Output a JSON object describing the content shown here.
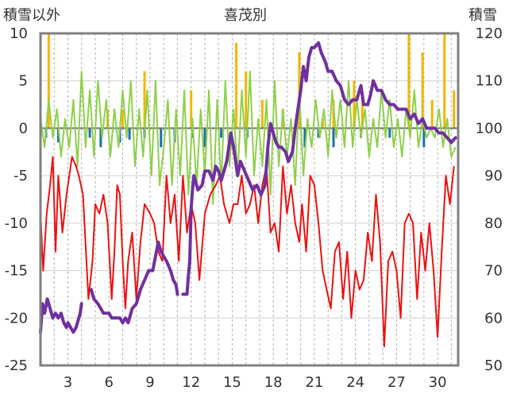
{
  "chart_data": {
    "type": "line",
    "title": "喜茂別",
    "y_left_label": "積雪以外",
    "y_right_label": "積雪",
    "y_left_range": [
      -25,
      10
    ],
    "y_left_ticks": [
      10,
      5,
      0,
      -5,
      -10,
      -15,
      -20,
      -25
    ],
    "y_right_range": [
      50,
      120
    ],
    "y_right_ticks": [
      120,
      110,
      100,
      90,
      80,
      70,
      60,
      50
    ],
    "x_range": [
      1,
      31.5
    ],
    "x_ticks": [
      3,
      6,
      9,
      12,
      15,
      18,
      21,
      24,
      27,
      30
    ],
    "grid": "vertical dashed at each day; horizontal at left-axis ticks",
    "series": [
      {
        "axis": "left",
        "style": "line",
        "color": "#ee1111",
        "x": [
          1.0,
          1.2,
          1.45,
          1.7,
          1.9,
          2.1,
          2.3,
          2.6,
          2.9,
          3.3,
          3.6,
          3.8,
          4.1,
          4.5,
          4.8,
          5.0,
          5.3,
          5.6,
          5.9,
          6.2,
          6.4,
          6.6,
          6.8,
          7.0,
          7.2,
          7.4,
          7.7,
          8.0,
          8.3,
          8.6,
          9.0,
          9.3,
          9.6,
          9.9,
          10.2,
          10.5,
          10.8,
          11.1,
          11.4,
          11.7,
          12.0,
          12.3,
          12.6,
          13.0,
          13.4,
          13.8,
          14.1,
          14.4,
          14.8,
          15.1,
          15.4,
          15.7,
          16.0,
          16.3,
          16.6,
          16.9,
          17.2,
          17.5,
          17.8,
          18.1,
          18.4,
          18.7,
          19.0,
          19.3,
          19.6,
          19.9,
          20.1,
          20.4,
          20.7,
          21.0,
          21.3,
          21.6,
          21.9,
          22.2,
          22.5,
          22.8,
          23.1,
          23.4,
          23.7,
          24.0,
          24.3,
          24.6,
          24.9,
          25.2,
          25.5,
          25.8,
          26.1,
          26.4,
          26.7,
          27.0,
          27.3,
          27.6,
          27.9,
          28.2,
          28.5,
          28.8,
          29.1,
          29.4,
          29.7,
          30.0,
          30.3,
          30.6,
          30.9,
          31.2
        ],
        "y": [
          -9,
          -15,
          -9,
          -6,
          -3,
          -13,
          -5,
          -11,
          -7,
          -3,
          -4,
          -5,
          -7,
          -18,
          -14,
          -8,
          -9,
          -7,
          -10,
          -18,
          -13,
          -6,
          -7,
          -14,
          -19,
          -14,
          -11,
          -18,
          -12,
          -8,
          -9,
          -10,
          -13,
          -14,
          -5,
          -10,
          -7,
          -14,
          -5,
          -11,
          -8,
          -10,
          -16,
          -9,
          -7,
          -6,
          -5,
          -8,
          -10,
          -8,
          -8,
          -5,
          -9,
          -8,
          -6,
          -10,
          -6,
          -4,
          -11,
          -10,
          -13,
          -4,
          -9,
          -6,
          -10,
          -12,
          -8,
          -13,
          -5,
          -6,
          -10,
          -15,
          -17,
          -19,
          -13,
          -12,
          -18,
          -13,
          -20,
          -15,
          -17,
          -16,
          -11,
          -14,
          -7,
          -12,
          -23,
          -14,
          -13,
          -15,
          -20,
          -10,
          -9,
          -10,
          -18,
          -11,
          -15,
          -10,
          -15,
          -22,
          -13,
          -5,
          -8,
          -4
        ]
      },
      {
        "axis": "left",
        "style": "line",
        "color": "#8fd04a",
        "x": [
          1.0,
          1.3,
          1.6,
          1.9,
          2.2,
          2.5,
          2.8,
          3.1,
          3.4,
          3.7,
          4.0,
          4.3,
          4.6,
          4.9,
          5.2,
          5.5,
          5.8,
          6.1,
          6.4,
          6.7,
          7.0,
          7.3,
          7.6,
          7.9,
          8.2,
          8.5,
          8.8,
          9.1,
          9.4,
          9.7,
          10.0,
          10.3,
          10.6,
          10.9,
          11.2,
          11.5,
          11.8,
          12.1,
          12.4,
          12.7,
          13.0,
          13.3,
          13.6,
          13.9,
          14.2,
          14.5,
          14.8,
          15.1,
          15.4,
          15.7,
          16.0,
          16.3,
          16.6,
          16.9,
          17.2,
          17.5,
          17.8,
          18.1,
          18.4,
          18.7,
          19.0,
          19.3,
          19.6,
          19.9,
          20.2,
          20.5,
          20.8,
          21.1,
          21.4,
          21.7,
          22.0,
          22.3,
          22.6,
          22.9,
          23.2,
          23.5,
          23.8,
          24.1,
          24.4,
          24.7,
          25.0,
          25.3,
          25.6,
          25.9,
          26.2,
          26.5,
          26.8,
          27.1,
          27.4,
          27.7,
          28.0,
          28.3,
          28.6,
          28.9,
          29.2,
          29.5,
          29.8,
          30.1,
          30.4,
          30.7,
          31.0,
          31.3
        ],
        "y": [
          1,
          -2,
          3,
          -1,
          2,
          -3,
          1,
          -2,
          3,
          -4,
          6,
          -2,
          4,
          -3,
          5,
          -1,
          3,
          -3,
          2,
          -2,
          4,
          -1,
          5,
          -4,
          2,
          -3,
          4,
          -5,
          5,
          -6,
          -2,
          3,
          -6,
          2,
          -5,
          4,
          -7,
          1,
          -6,
          2,
          -5,
          4,
          -8,
          3,
          -6,
          5,
          -4,
          2,
          -5,
          4,
          -3,
          6,
          -5,
          1,
          -4,
          3,
          -7,
          5,
          -4,
          2,
          -3,
          1,
          -6,
          4,
          -5,
          1,
          -2,
          3,
          -1,
          2,
          -3,
          4,
          -1,
          3,
          -2,
          5,
          -2,
          3,
          -1,
          2,
          -3,
          1,
          -2,
          4,
          -1,
          3,
          -2,
          1,
          -3,
          2,
          -1,
          4,
          -2,
          1,
          -1,
          0,
          -1,
          2,
          -2,
          1,
          -3,
          -2
        ]
      },
      {
        "axis": "left",
        "style": "bars",
        "color": "#f2b600",
        "x": [
          1.6,
          5.9,
          7.0,
          8.6,
          12.0,
          15.3,
          16.0,
          17.2,
          18.7,
          19.9,
          21.6,
          22.4,
          23.9,
          24.5,
          27.9,
          28.9,
          29.6,
          30.5,
          31.2
        ],
        "y": [
          10,
          2,
          2,
          6,
          4,
          9,
          6,
          3,
          2,
          8,
          1,
          3,
          5,
          3,
          10,
          8,
          3,
          10,
          4
        ]
      },
      {
        "axis": "left",
        "style": "bars",
        "color": "#1b6fb5",
        "x": [
          1.4,
          2.3,
          4.6,
          5.4,
          6.8,
          7.5,
          8.6,
          9.8,
          10.8,
          12.1,
          13.0,
          14.2,
          16.1,
          20.3,
          21.3,
          22.4,
          24.4,
          26.5,
          29.0
        ],
        "y": [
          -1,
          -1.5,
          -1,
          -2,
          -1.5,
          -1.2,
          -1,
          -2,
          -1.5,
          -1,
          -2,
          -1,
          -1,
          -2,
          -1,
          -2,
          -1,
          -1,
          -2
        ]
      },
      {
        "axis": "right",
        "style": "line",
        "color": "#7030a0",
        "segments": [
          [
            [
              1.0,
              57
            ],
            [
              1.15,
              63
            ],
            [
              1.3,
              61
            ],
            [
              1.5,
              64
            ],
            [
              1.7,
              62
            ],
            [
              1.9,
              60
            ],
            [
              2.1,
              61
            ],
            [
              2.3,
              60
            ],
            [
              2.5,
              61
            ],
            [
              2.7,
              59
            ],
            [
              2.9,
              58
            ],
            [
              3.0,
              59
            ],
            [
              3.2,
              58
            ],
            [
              3.4,
              57
            ],
            [
              3.6,
              58
            ],
            [
              3.8,
              60
            ],
            [
              3.9,
              61
            ],
            [
              4.0,
              63
            ]
          ],
          [
            [
              4.7,
              66
            ],
            [
              4.9,
              64
            ],
            [
              5.2,
              63
            ],
            [
              5.4,
              62
            ],
            [
              5.6,
              61
            ],
            [
              5.8,
              61
            ],
            [
              6.0,
              61
            ],
            [
              6.2,
              60
            ],
            [
              6.5,
              60
            ],
            [
              6.8,
              60
            ],
            [
              7.0,
              59
            ],
            [
              7.2,
              60
            ],
            [
              7.4,
              59
            ],
            [
              7.7,
              62
            ],
            [
              8.0,
              63
            ],
            [
              8.3,
              66
            ],
            [
              8.6,
              68
            ],
            [
              8.9,
              70
            ],
            [
              9.2,
              70
            ],
            [
              9.6,
              76
            ],
            [
              9.8,
              74
            ],
            [
              10.0,
              73
            ],
            [
              10.2,
              72
            ],
            [
              10.5,
              70
            ],
            [
              10.7,
              68
            ],
            [
              10.9,
              67
            ],
            [
              11.0,
              65
            ]
          ],
          [
            [
              11.4,
              65
            ],
            [
              11.7,
              65
            ],
            [
              11.8,
              69
            ],
            [
              11.9,
              72
            ],
            [
              12.0,
              83
            ],
            [
              12.1,
              87
            ],
            [
              12.2,
              90
            ],
            [
              12.5,
              87
            ],
            [
              12.8,
              88
            ],
            [
              13.0,
              91
            ],
            [
              13.3,
              91
            ],
            [
              13.6,
              89
            ],
            [
              13.8,
              92
            ],
            [
              14.0,
              91
            ],
            [
              14.2,
              89
            ],
            [
              14.4,
              91
            ],
            [
              14.6,
              93
            ],
            [
              14.7,
              95
            ],
            [
              14.9,
              99
            ],
            [
              15.1,
              96
            ],
            [
              15.4,
              90
            ],
            [
              15.6,
              93
            ],
            [
              15.9,
              91
            ],
            [
              16.2,
              89
            ],
            [
              16.5,
              87
            ],
            [
              16.8,
              88
            ],
            [
              17.1,
              86
            ],
            [
              17.4,
              88
            ],
            [
              17.6,
              96
            ],
            [
              17.8,
              101
            ],
            [
              18.0,
              99
            ],
            [
              18.2,
              97
            ],
            [
              18.4,
              96
            ],
            [
              18.6,
              96
            ],
            [
              18.9,
              95
            ],
            [
              19.1,
              93
            ],
            [
              19.4,
              95
            ],
            [
              19.6,
              100
            ],
            [
              19.8,
              104
            ],
            [
              20.0,
              108
            ],
            [
              20.2,
              113
            ],
            [
              20.4,
              110
            ],
            [
              20.6,
              115
            ],
            [
              20.8,
              117
            ],
            [
              21.0,
              117
            ],
            [
              21.3,
              118
            ],
            [
              21.5,
              116
            ],
            [
              21.8,
              114
            ],
            [
              22.0,
              112
            ],
            [
              22.3,
              112
            ],
            [
              22.6,
              110
            ],
            [
              22.9,
              109
            ],
            [
              23.2,
              106
            ],
            [
              23.5,
              105
            ],
            [
              23.8,
              106
            ],
            [
              24.1,
              106
            ],
            [
              24.4,
              109
            ],
            [
              24.6,
              105
            ],
            [
              24.9,
              105
            ],
            [
              25.1,
              107
            ],
            [
              25.3,
              110
            ],
            [
              25.6,
              108
            ],
            [
              25.9,
              108
            ],
            [
              26.2,
              106
            ],
            [
              26.5,
              105
            ],
            [
              26.8,
              105
            ],
            [
              27.1,
              104
            ],
            [
              27.4,
              104
            ],
            [
              27.7,
              104
            ],
            [
              28.0,
              102
            ],
            [
              28.3,
              103
            ],
            [
              28.6,
              101
            ],
            [
              28.9,
              102
            ],
            [
              29.2,
              100
            ],
            [
              29.5,
              100
            ],
            [
              29.8,
              100
            ],
            [
              30.1,
              99
            ],
            [
              30.4,
              99
            ],
            [
              30.7,
              98
            ],
            [
              31.0,
              97
            ],
            [
              31.3,
              98
            ]
          ]
        ]
      }
    ]
  }
}
